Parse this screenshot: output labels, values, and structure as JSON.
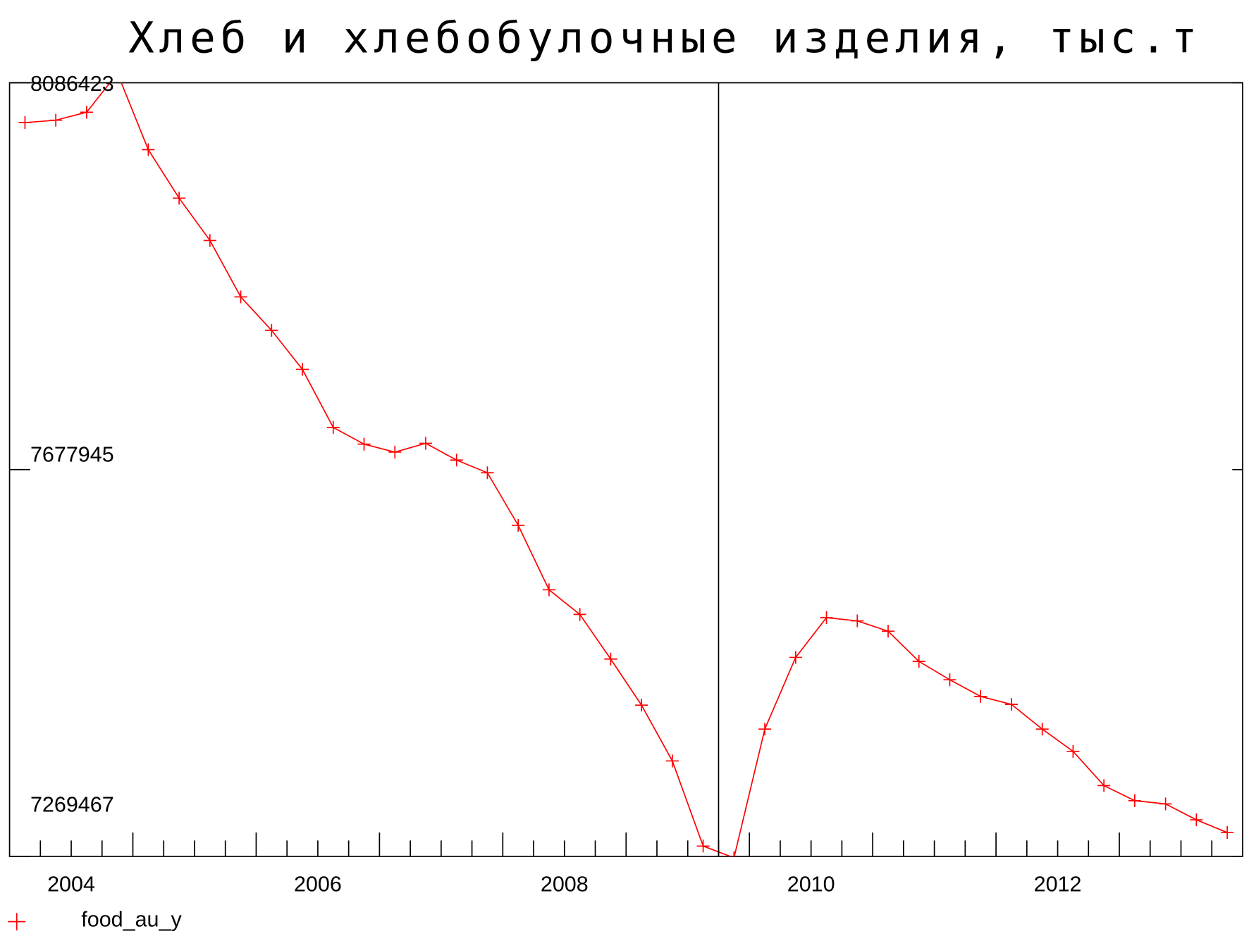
{
  "chart_data": {
    "type": "line",
    "title": "Хлеб и хлебобулочные изделия, тыс.т",
    "x": [
      2004.125,
      2004.375,
      2004.625,
      2004.875,
      2005.125,
      2005.375,
      2005.625,
      2005.875,
      2006.125,
      2006.375,
      2006.625,
      2006.875,
      2007.125,
      2007.375,
      2007.625,
      2007.875,
      2008.125,
      2008.375,
      2008.625,
      2008.875,
      2009.125,
      2009.375,
      2009.625,
      2009.875,
      2010.125,
      2010.375,
      2010.625,
      2010.875,
      2011.125,
      2011.375,
      2011.625,
      2011.875,
      2012.125,
      2012.375,
      2012.625,
      2012.875,
      2013.125,
      2013.375,
      2013.625,
      2013.875
    ],
    "series": [
      {
        "name": "food_au_y",
        "color": "#ff0000",
        "values": [
          8044400,
          8046900,
          8055300,
          8096500,
          8015800,
          7964600,
          7919900,
          7860300,
          7825000,
          7783800,
          7722500,
          7704800,
          7696400,
          7705700,
          7688000,
          7674600,
          7619100,
          7551000,
          7525000,
          7477900,
          7429200,
          7370300,
          7280400,
          7268000,
          7403900,
          7479600,
          7521600,
          7518200,
          7507300,
          7475400,
          7456000,
          7438400,
          7430000,
          7403900,
          7380400,
          7344300,
          7328300,
          7324900,
          7308100,
          7294700
        ]
      }
    ],
    "xlim": [
      2004,
      2014
    ],
    "xticks": [
      {
        "value": 2004.5,
        "label": "2004"
      },
      {
        "value": 2006.5,
        "label": "2006"
      },
      {
        "value": 2008.5,
        "label": "2008"
      },
      {
        "value": 2010.5,
        "label": "2010"
      },
      {
        "value": 2012.5,
        "label": "2012"
      }
    ],
    "ylim": [
      7269467,
      8086423
    ],
    "yticks": [
      7269467,
      7677945,
      8086423
    ],
    "vline": 2009.75,
    "legend": "bottom-left"
  }
}
